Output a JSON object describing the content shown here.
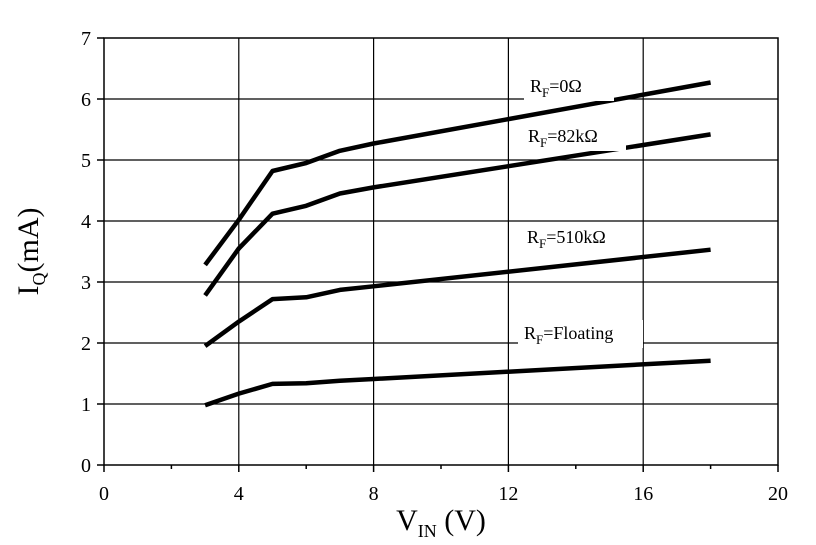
{
  "chart_data": {
    "type": "line",
    "xlabel": {
      "main": "V",
      "sub": "IN",
      "tail": " (V)"
    },
    "ylabel": {
      "main": "I",
      "sub": "Q",
      "tail": "(mA)"
    },
    "xlim": [
      0,
      20
    ],
    "ylim": [
      0,
      7
    ],
    "xticks": [
      0,
      4,
      8,
      12,
      16,
      20
    ],
    "yticks": [
      0,
      1,
      2,
      3,
      4,
      5,
      6,
      7
    ],
    "grid": {
      "x": true,
      "y": true
    },
    "legend": "inline labels above each curve",
    "series": [
      {
        "name": "RF=0Ω",
        "label": {
          "main": "R",
          "sub": "F",
          "tail": "=0Ω"
        },
        "x": [
          3,
          4,
          5,
          6,
          7,
          8,
          18
        ],
        "y": [
          3.28,
          4.02,
          4.82,
          4.95,
          5.15,
          5.27,
          6.27
        ]
      },
      {
        "name": "RF=82kΩ",
        "label": {
          "main": "R",
          "sub": "F",
          "tail": "=82kΩ"
        },
        "x": [
          3,
          4,
          5,
          6,
          7,
          8,
          18
        ],
        "y": [
          2.78,
          3.55,
          4.12,
          4.25,
          4.45,
          4.55,
          5.42
        ]
      },
      {
        "name": "RF=510kΩ",
        "label": {
          "main": "R",
          "sub": "F",
          "tail": "=510kΩ"
        },
        "x": [
          3,
          4,
          5,
          6,
          7,
          8,
          18
        ],
        "y": [
          1.95,
          2.35,
          2.72,
          2.75,
          2.87,
          2.93,
          3.53
        ]
      },
      {
        "name": "RF=Floating",
        "label": {
          "main": "R",
          "sub": "F",
          "tail": "=Floating"
        },
        "x": [
          3,
          4,
          5,
          6,
          7,
          8,
          18
        ],
        "y": [
          0.98,
          1.17,
          1.33,
          1.34,
          1.38,
          1.41,
          1.71
        ]
      }
    ]
  }
}
